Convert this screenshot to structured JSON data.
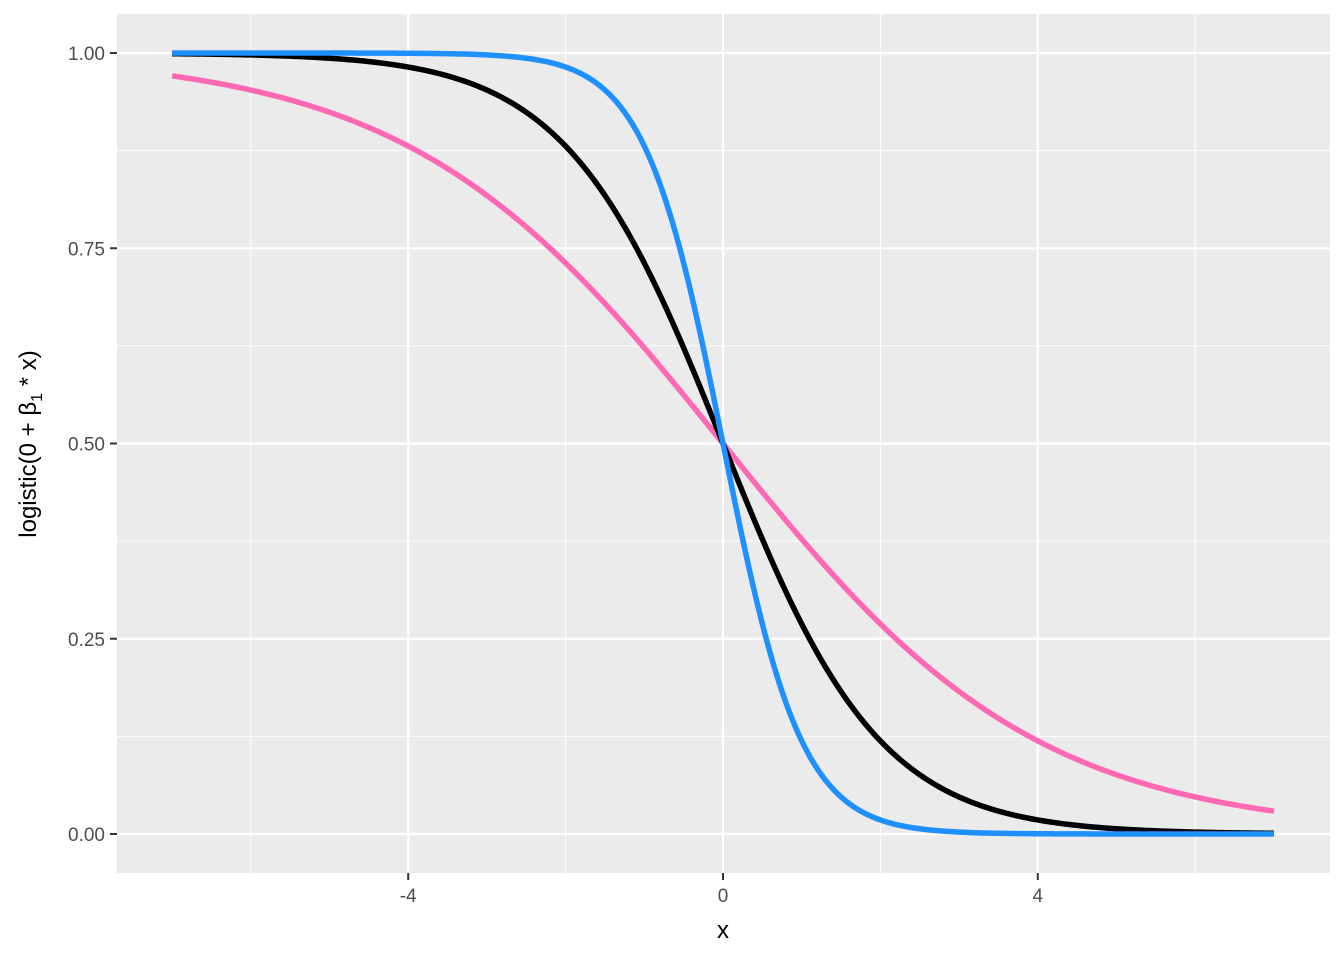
{
  "chart_data": {
    "type": "line",
    "title": "",
    "xlabel": "x",
    "ylabel": {
      "prefix": "logistic(0 + β",
      "subscript": "1",
      "suffix": " * x)"
    },
    "xlim": [
      -7,
      7
    ],
    "ylim": [
      0,
      1
    ],
    "x_ticks": [
      -4,
      0,
      4
    ],
    "x_tick_labels": [
      "-4",
      "0",
      "4"
    ],
    "y_ticks": [
      0,
      0.25,
      0.5,
      0.75,
      1
    ],
    "y_tick_labels": [
      "0.00",
      "0.25",
      "0.50",
      "0.75",
      "1.00"
    ],
    "grid": true,
    "background": "#ebebeb",
    "series": [
      {
        "color": "#ff69b4",
        "function": "logistic(-0.5 * x)",
        "x": [
          -7,
          -6,
          -5,
          -4,
          -3,
          -2,
          -1,
          0,
          1,
          2,
          3,
          4,
          5,
          6,
          7
        ],
        "values": [
          0.971,
          0.953,
          0.924,
          0.881,
          0.818,
          0.731,
          0.622,
          0.5,
          0.378,
          0.269,
          0.182,
          0.119,
          0.076,
          0.047,
          0.029
        ]
      },
      {
        "color": "#000000",
        "function": "logistic(-1 * x)",
        "x": [
          -7,
          -6,
          -5,
          -4,
          -3,
          -2,
          -1,
          0,
          1,
          2,
          3,
          4,
          5,
          6,
          7
        ],
        "values": [
          0.999,
          0.998,
          0.993,
          0.982,
          0.953,
          0.881,
          0.731,
          0.5,
          0.269,
          0.119,
          0.047,
          0.018,
          0.007,
          0.002,
          0.001
        ]
      },
      {
        "color": "#1e90ff",
        "function": "logistic(-2 * x)",
        "x": [
          -7,
          -6,
          -5,
          -4,
          -3,
          -2,
          -1,
          0,
          1,
          2,
          3,
          4,
          5,
          6,
          7
        ],
        "values": [
          1.0,
          1.0,
          1.0,
          1.0,
          0.998,
          0.982,
          0.881,
          0.5,
          0.119,
          0.018,
          0.002,
          0.0,
          0.0,
          0.0,
          0.0
        ]
      }
    ]
  }
}
